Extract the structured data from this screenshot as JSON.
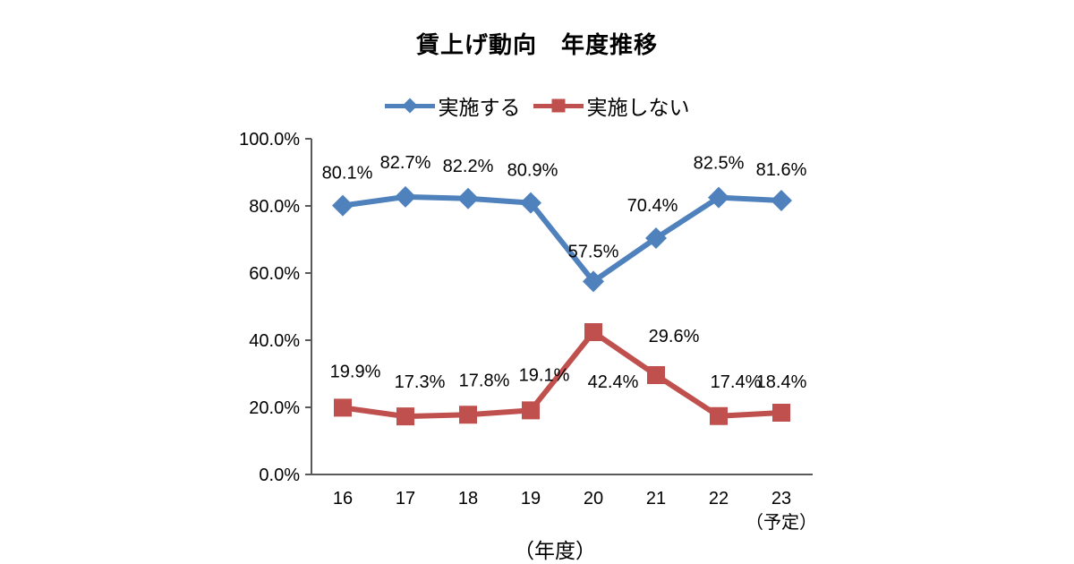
{
  "title": "賃上げ動向　年度推移",
  "chart_data": {
    "type": "line",
    "title": "賃上げ動向　年度推移",
    "categories": [
      "16",
      "17",
      "18",
      "19",
      "20",
      "21",
      "22",
      "23"
    ],
    "x_note_last": "（予定）",
    "xlabel": "（年度）",
    "ylabel": "",
    "ylim": [
      0,
      100
    ],
    "yticks": [
      0,
      20,
      40,
      60,
      80,
      100
    ],
    "ytick_labels": [
      "0.0%",
      "20.0%",
      "40.0%",
      "60.0%",
      "80.0%",
      "100.0%"
    ],
    "grid": false,
    "legend_position": "top",
    "axis_color": "#595959",
    "series": [
      {
        "name": "実施する",
        "color": "#4F81BD",
        "marker": "diamond",
        "values": [
          80.1,
          82.7,
          82.2,
          80.9,
          57.5,
          70.4,
          82.5,
          81.6
        ],
        "labels": [
          "80.1%",
          "82.7%",
          "82.2%",
          "80.9%",
          "57.5%",
          "70.4%",
          "82.5%",
          "81.6%"
        ],
        "label_dx": [
          5,
          0,
          0,
          2,
          0,
          -4,
          0,
          0
        ],
        "label_dy": [
          -30,
          -32,
          -30,
          -30,
          -27,
          -30,
          -32,
          -28
        ]
      },
      {
        "name": "実施しない",
        "color": "#C0504D",
        "marker": "square",
        "values": [
          19.9,
          17.3,
          17.8,
          19.1,
          42.4,
          29.6,
          17.4,
          18.4
        ],
        "labels": [
          "19.9%",
          "17.3%",
          "17.8%",
          "19.1%",
          "42.4%",
          "29.6%",
          "17.4%",
          "18.4%"
        ],
        "label_dx": [
          14,
          16,
          18,
          15,
          22,
          20,
          19,
          0
        ],
        "label_dy": [
          -34,
          -32,
          -32,
          -33,
          62,
          -37,
          -32,
          -28
        ]
      }
    ]
  }
}
